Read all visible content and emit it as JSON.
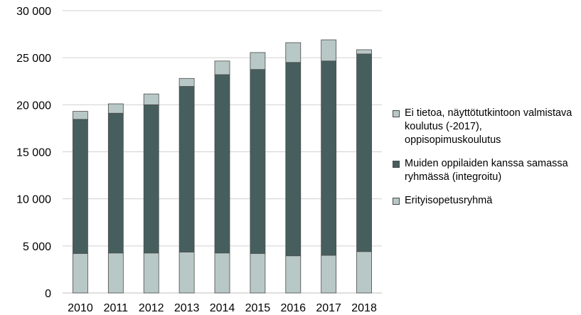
{
  "chart_data": {
    "type": "bar",
    "stacked": true,
    "categories": [
      "2010",
      "2011",
      "2012",
      "2013",
      "2014",
      "2015",
      "2016",
      "2017",
      "2018"
    ],
    "series": [
      {
        "name": "Erityisopetusryhmä",
        "color": "#b8c8c6",
        "values": [
          4200,
          4250,
          4250,
          4350,
          4250,
          4200,
          3950,
          4000,
          4400
        ]
      },
      {
        "name": "Muiden oppilaiden kanssa samassa ryhmässä (integroitu)",
        "color": "#465f5e",
        "values": [
          14250,
          14850,
          15750,
          17600,
          18950,
          19550,
          20550,
          20650,
          21000
        ]
      },
      {
        "name": "Ei tietoa, näyttötutkintoon valmistava koulutus (-2017), oppisopimuskoulutus",
        "color": "#b8c8c6",
        "values": [
          850,
          1000,
          1150,
          850,
          1450,
          1800,
          2100,
          2250,
          450
        ]
      }
    ],
    "ylim": [
      0,
      30000
    ],
    "yticks": [
      {
        "value": 0,
        "label": "0"
      },
      {
        "value": 5000,
        "label": "5 000"
      },
      {
        "value": 10000,
        "label": "10 000"
      },
      {
        "value": 15000,
        "label": "15 000"
      },
      {
        "value": 20000,
        "label": "20 000"
      },
      {
        "value": 25000,
        "label": "25 000"
      },
      {
        "value": 30000,
        "label": "30 000"
      }
    ],
    "grid": true,
    "legend_position": "right",
    "legend_order": [
      2,
      1,
      0
    ]
  }
}
